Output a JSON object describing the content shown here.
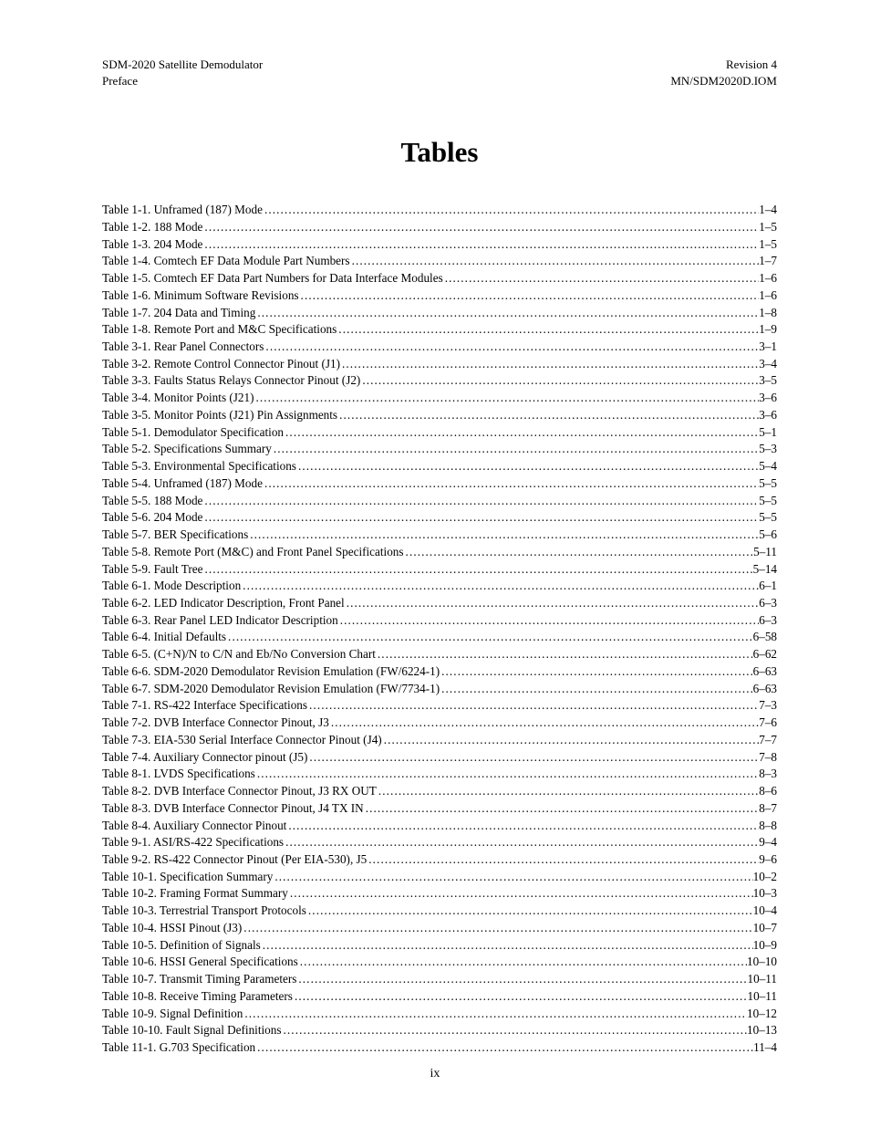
{
  "header": {
    "left_line1": "SDM-2020 Satellite Demodulator",
    "left_line2": "Preface",
    "right_line1": "Revision 4",
    "right_line2": "MN/SDM2020D.IOM"
  },
  "title": "Tables",
  "footer": "ix",
  "entries": [
    {
      "label": "Table 1-1.  Unframed (187) Mode",
      "page": "1–4"
    },
    {
      "label": "Table 1-2.  188 Mode",
      "page": "1–5"
    },
    {
      "label": "Table 1-3.  204 Mode",
      "page": "1–5"
    },
    {
      "label": "Table 1-4.  Comtech EF Data Module Part Numbers",
      "page": "1–7"
    },
    {
      "label": "Table 1-5.  Comtech EF Data Part Numbers for Data Interface Modules",
      "page": "1–6"
    },
    {
      "label": "Table 1-6.  Minimum Software Revisions",
      "page": "1–6"
    },
    {
      "label": "Table 1-7.  204 Data and Timing",
      "page": "1–8"
    },
    {
      "label": "Table 1-8.  Remote Port and M&C Specifications",
      "page": "1–9"
    },
    {
      "label": "Table 3-1.  Rear Panel Connectors",
      "page": "3–1"
    },
    {
      "label": "Table 3-2.  Remote Control Connector Pinout (J1)",
      "page": "3–4"
    },
    {
      "label": "Table 3-3.  Faults Status Relays Connector Pinout (J2)",
      "page": "3–5"
    },
    {
      "label": "Table 3-4.  Monitor Points (J21)",
      "page": "3–6"
    },
    {
      "label": "Table 3-5.  Monitor Points (J21) Pin Assignments",
      "page": "3–6"
    },
    {
      "label": "Table 5-1.  Demodulator Specification",
      "page": "5–1"
    },
    {
      "label": "Table 5-2.  Specifications Summary",
      "page": "5–3"
    },
    {
      "label": "Table 5-3.  Environmental Specifications",
      "page": "5–4"
    },
    {
      "label": "Table 5-4.  Unframed (187) Mode",
      "page": "5–5"
    },
    {
      "label": "Table 5-5.  188 Mode",
      "page": "5–5"
    },
    {
      "label": "Table 5-6.  204 Mode",
      "page": "5–5"
    },
    {
      "label": "Table 5-7.  BER Specifications",
      "page": "5–6"
    },
    {
      "label": "Table 5-8.  Remote Port (M&C) and Front Panel Specifications",
      "page": "5–11"
    },
    {
      "label": "Table 5-9.  Fault Tree",
      "page": "5–14"
    },
    {
      "label": "Table 6-1.  Mode Description",
      "page": "6–1"
    },
    {
      "label": "Table 6-2.  LED Indicator Description, Front Panel",
      "page": "6–3"
    },
    {
      "label": "Table 6-3.  Rear Panel LED Indicator Description",
      "page": "6–3"
    },
    {
      "label": "Table 6-4.  Initial Defaults",
      "page": "6–58"
    },
    {
      "label": "Table 6-5.  (C+N)/N to C/N and Eb/No Conversion Chart",
      "page": "6–62"
    },
    {
      "label": "Table 6-6.  SDM-2020 Demodulator Revision Emulation (FW/6224-1)",
      "page": "6–63"
    },
    {
      "label": "Table 6-7.  SDM-2020 Demodulator Revision Emulation (FW/7734-1)",
      "page": "6–63"
    },
    {
      "label": "Table 7-1.  RS-422 Interface Specifications",
      "page": "7–3"
    },
    {
      "label": "Table 7-2.  DVB Interface Connector Pinout, J3",
      "page": "7–6"
    },
    {
      "label": "Table 7-3.  EIA-530 Serial Interface Connector Pinout (J4)",
      "page": "7–7"
    },
    {
      "label": "Table 7-4.  Auxiliary Connector pinout (J5)",
      "page": "7–8"
    },
    {
      "label": "Table 8-1.  LVDS Specifications",
      "page": "8–3"
    },
    {
      "label": "Table 8-2.  DVB Interface Connector Pinout, J3 RX OUT",
      "page": "8–6"
    },
    {
      "label": "Table 8-3.  DVB Interface Connector Pinout, J4 TX IN",
      "page": "8–7"
    },
    {
      "label": "Table 8-4.  Auxiliary Connector Pinout",
      "page": "8–8"
    },
    {
      "label": "Table 9-1.  ASI/RS-422 Specifications",
      "page": "9–4"
    },
    {
      "label": "Table 9-2.  RS-422 Connector Pinout (Per EIA-530), J5",
      "page": "9–6"
    },
    {
      "label": "Table 10-1.  Specification Summary",
      "page": "10–2"
    },
    {
      "label": "Table 10-2.  Framing Format Summary",
      "page": "10–3"
    },
    {
      "label": "Table 10-3.  Terrestrial Transport Protocols",
      "page": "10–4"
    },
    {
      "label": "Table 10-4.  HSSI Pinout (J3)",
      "page": "10–7"
    },
    {
      "label": "Table 10-5.  Definition of Signals",
      "page": "10–9"
    },
    {
      "label": "Table 10-6.  HSSI General Specifications",
      "page": "10–10"
    },
    {
      "label": "Table 10-7.  Transmit Timing Parameters",
      "page": "10–11"
    },
    {
      "label": "Table 10-8.  Receive Timing Parameters",
      "page": "10–11"
    },
    {
      "label": "Table 10-9.  Signal Definition",
      "page": "10–12"
    },
    {
      "label": "Table 10-10.  Fault Signal Definitions",
      "page": "10–13"
    },
    {
      "label": "Table 11-1.  G.703 Specification",
      "page": "11–4"
    }
  ]
}
